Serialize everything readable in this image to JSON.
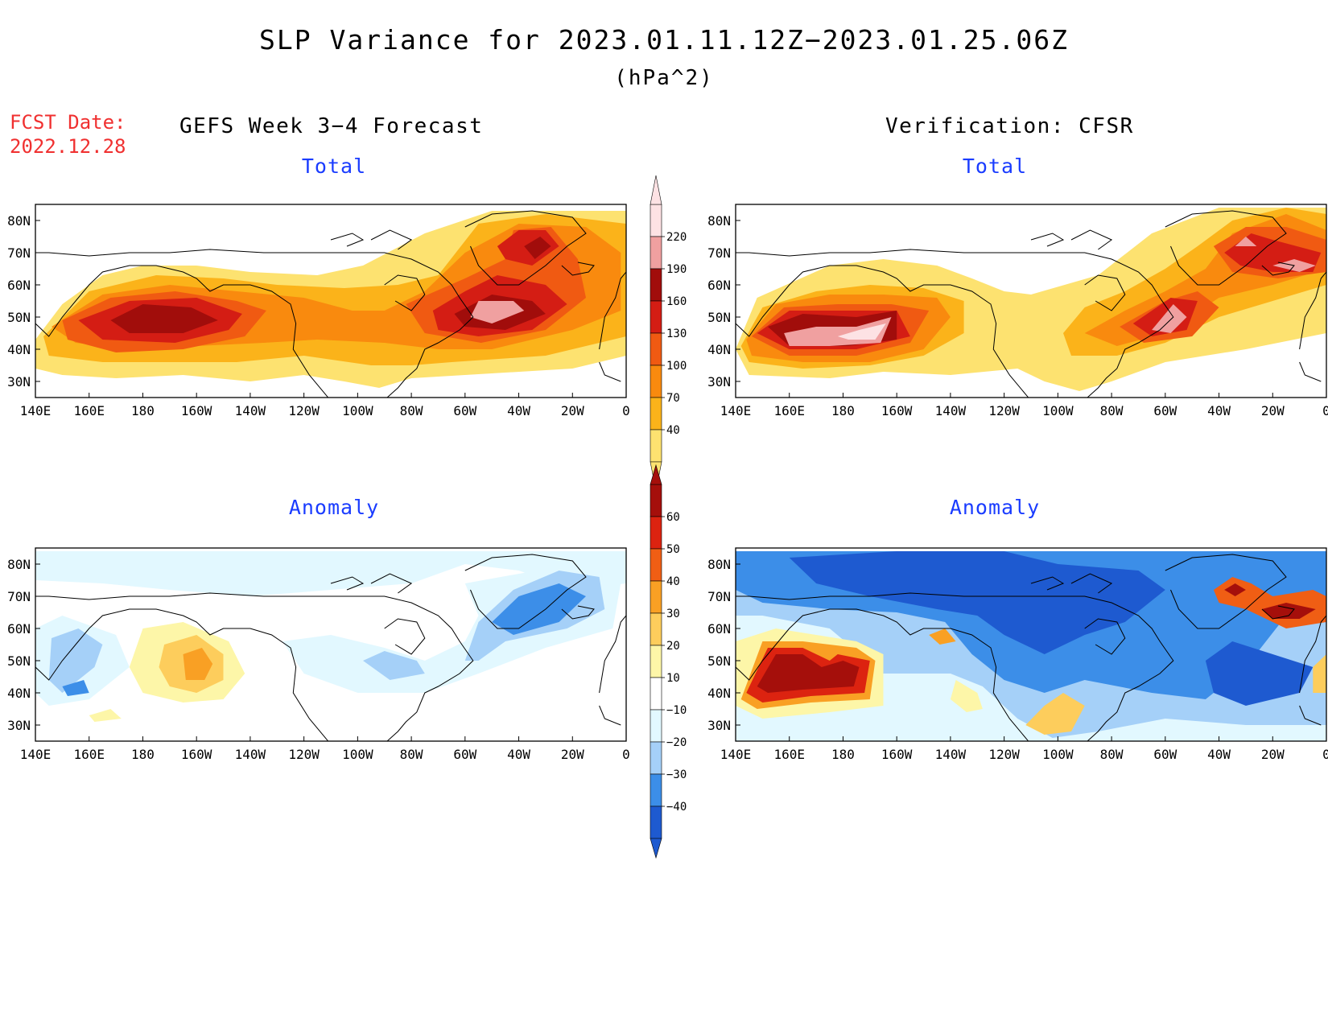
{
  "title": "SLP Variance for 2023.01.11.12Z−2023.01.25.06Z",
  "units": "(hPa^2)",
  "fcst_label": "FCST Date:",
  "fcst_date": "2022.12.28",
  "left_heading": "GEFS Week 3−4 Forecast",
  "right_heading": "Verification: CFSR",
  "panels": {
    "forecast_total": "Total",
    "verification_total": "Total",
    "forecast_anomaly": "Anomaly",
    "verification_anomaly": "Anomaly"
  },
  "axes": {
    "lat_labels": [
      "80N",
      "70N",
      "60N",
      "50N",
      "40N",
      "30N"
    ],
    "lon_labels": [
      "140E",
      "160E",
      "180",
      "160W",
      "140W",
      "120W",
      "100W",
      "80W",
      "60W",
      "40W",
      "20W",
      "0"
    ],
    "lat_range": [
      25,
      85
    ],
    "lon_range_east": [
      140,
      360
    ]
  },
  "colorbars": {
    "total": {
      "levels": [
        "40",
        "70",
        "100",
        "130",
        "160",
        "190",
        "220"
      ],
      "colors": [
        "#fde270",
        "#fbb31a",
        "#f98a0e",
        "#f05a12",
        "#d41d14",
        "#a10d0b",
        "#f0a0a0",
        "#fde2e4"
      ]
    },
    "anomaly": {
      "levels": [
        "60",
        "50",
        "40",
        "30",
        "20",
        "10",
        "−10",
        "−20",
        "−30",
        "−40"
      ],
      "colors": [
        "#a50f0b",
        "#dc2310",
        "#f05e14",
        "#f9a024",
        "#fdcd5c",
        "#fdf6a8",
        "#ffffff",
        "#e2f8ff",
        "#a5d0f8",
        "#3c8ee8",
        "#1e5ad0"
      ]
    }
  },
  "colors": {
    "title_red": "#f03030",
    "panel_title_blue": "#1a3cff"
  }
}
